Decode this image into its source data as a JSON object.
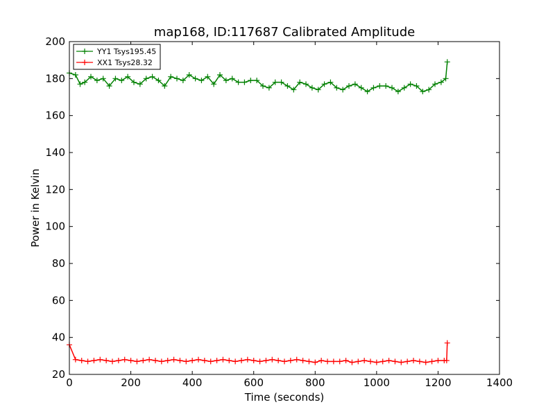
{
  "chart_data": {
    "type": "line",
    "title": "map168, ID:117687 Calibrated Amplitude",
    "xlabel": "Time (seconds)",
    "ylabel": "Power in Kelvin",
    "xlim": [
      0,
      1400
    ],
    "ylim": [
      20,
      200
    ],
    "xticks": [
      0,
      200,
      400,
      600,
      800,
      1000,
      1200,
      1400
    ],
    "yticks": [
      20,
      40,
      60,
      80,
      100,
      120,
      140,
      160,
      180,
      200
    ],
    "grid": false,
    "legend_position": "top-left",
    "marker": "plus",
    "series": [
      {
        "name": "YY1 Tsys195.45",
        "color": "#008000",
        "x": [
          0,
          20,
          35,
          50,
          70,
          90,
          110,
          130,
          150,
          170,
          190,
          210,
          230,
          250,
          270,
          290,
          310,
          330,
          350,
          370,
          390,
          410,
          430,
          450,
          470,
          490,
          510,
          530,
          550,
          570,
          590,
          610,
          630,
          650,
          670,
          690,
          710,
          730,
          750,
          770,
          790,
          810,
          830,
          850,
          870,
          890,
          910,
          930,
          950,
          970,
          990,
          1010,
          1030,
          1050,
          1070,
          1090,
          1110,
          1130,
          1150,
          1170,
          1190,
          1210,
          1225,
          1230
        ],
        "y": [
          183,
          182,
          177,
          178,
          181,
          179,
          180,
          176,
          180,
          179,
          181,
          178,
          177,
          180,
          181,
          179,
          176,
          181,
          180,
          179,
          182,
          180,
          179,
          181,
          177,
          182,
          179,
          180,
          178,
          178,
          179,
          179,
          176,
          175,
          178,
          178,
          176,
          174,
          178,
          177,
          175,
          174,
          177,
          178,
          175,
          174,
          176,
          177,
          175,
          173,
          175,
          176,
          176,
          175,
          173,
          175,
          177,
          176,
          173,
          174,
          177,
          178,
          180,
          189
        ]
      },
      {
        "name": "XX1 Tsys28.32",
        "color": "#ff0000",
        "x": [
          0,
          20,
          40,
          60,
          80,
          100,
          120,
          140,
          160,
          180,
          200,
          220,
          240,
          260,
          280,
          300,
          320,
          340,
          360,
          380,
          400,
          420,
          440,
          460,
          480,
          500,
          520,
          540,
          560,
          580,
          600,
          620,
          640,
          660,
          680,
          700,
          720,
          740,
          760,
          780,
          800,
          820,
          840,
          860,
          880,
          900,
          920,
          940,
          960,
          980,
          1000,
          1020,
          1040,
          1060,
          1080,
          1100,
          1120,
          1140,
          1160,
          1180,
          1200,
          1220,
          1228,
          1230
        ],
        "y": [
          36,
          28,
          27.5,
          27,
          27.5,
          28,
          27.5,
          27,
          27.5,
          28,
          27.5,
          27,
          27.5,
          28,
          27.5,
          27,
          27.5,
          28,
          27.5,
          27,
          27.5,
          28,
          27.5,
          27,
          27.5,
          28,
          27.5,
          27,
          27.5,
          28,
          27.5,
          27,
          27.5,
          28,
          27.5,
          27,
          27.5,
          28,
          27.5,
          27,
          26.5,
          27.5,
          27,
          27,
          27,
          27.5,
          26.5,
          27,
          27.5,
          27,
          26.5,
          27,
          27.5,
          27,
          26.5,
          27,
          27.5,
          27,
          26.5,
          27,
          27.5,
          27.5,
          27.5,
          37
        ]
      }
    ]
  }
}
